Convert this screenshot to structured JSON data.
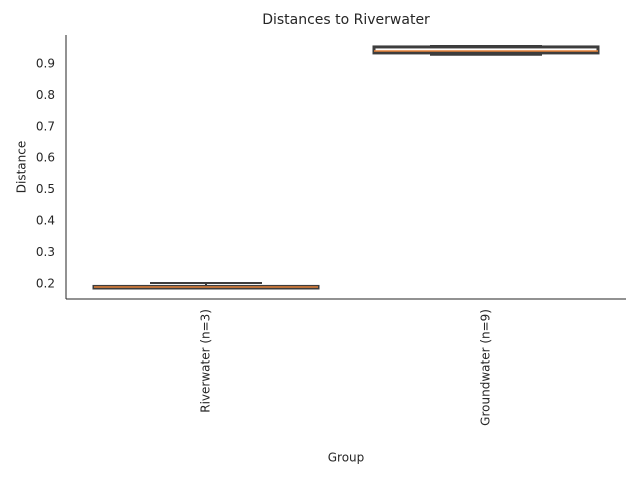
{
  "chart_data": {
    "type": "box",
    "title": "Distances to Riverwater",
    "x_label": "Group",
    "y_label": "Distance",
    "categories": [
      "Riverwater (n=3)",
      "Groundwater (n=9)"
    ],
    "boxes": [
      {
        "whislo": 0.187,
        "q1": 0.187,
        "median": 0.19,
        "q3": 0.192,
        "whishi": 0.203
      },
      {
        "whislo": 0.929,
        "q1": 0.935,
        "median": 0.941,
        "q3": 0.954,
        "whishi": 0.957
      }
    ],
    "box_color": "#3d3d3d",
    "median_color": "#e8833a",
    "ylim": [
      0.152,
      0.992
    ],
    "yticks": [
      0.2,
      0.3,
      0.4,
      0.5,
      0.6,
      0.7,
      0.8,
      0.9
    ],
    "grid": false
  }
}
